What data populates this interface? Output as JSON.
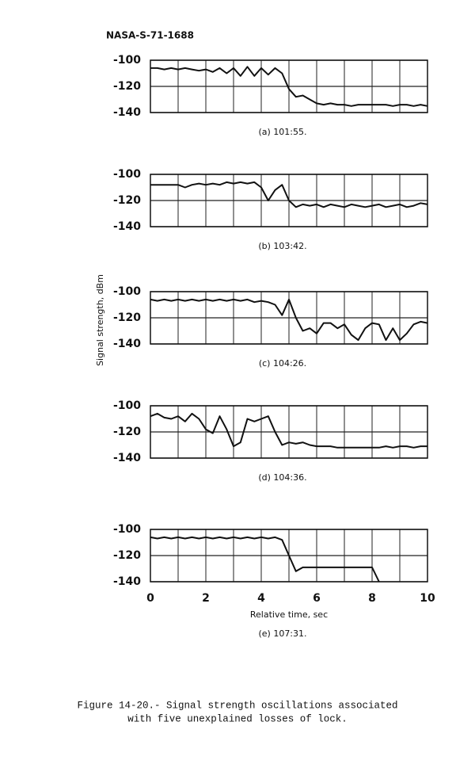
{
  "header": "NASA-S-71-1688",
  "y_label": "Signal strength, dBm",
  "x_label": "Relative time, sec",
  "caption": [
    "Figure 14-20.- Signal strength oscillations associated",
    "with five unexplained losses of lock."
  ],
  "chart_data": [
    {
      "type": "line",
      "title": "(a) 101:55.",
      "xlim": [
        0,
        10
      ],
      "ylim": [
        -140,
        -100
      ],
      "yticks": [
        -100,
        -120,
        -140
      ],
      "grid": true,
      "x": [
        0,
        0.25,
        0.5,
        0.75,
        1,
        1.25,
        1.5,
        1.75,
        2,
        2.25,
        2.5,
        2.75,
        3,
        3.25,
        3.5,
        3.75,
        4,
        4.25,
        4.5,
        4.75,
        5,
        5.25,
        5.5,
        5.75,
        6,
        6.25,
        6.5,
        6.75,
        7,
        7.25,
        7.5,
        7.75,
        8,
        8.25,
        8.5,
        8.75,
        9,
        9.25,
        9.5,
        9.75,
        10
      ],
      "series": [
        {
          "color": "#111",
          "values": [
            -106,
            -106,
            -107,
            -106,
            -107,
            -106,
            -107,
            -108,
            -107,
            -109,
            -106,
            -110,
            -106,
            -112,
            -105,
            -112,
            -106,
            -111,
            -106,
            -110,
            -122,
            -128,
            -127,
            -130,
            -133,
            -134,
            -133,
            -134,
            -134,
            -135,
            -134,
            -134,
            -134,
            -134,
            -134,
            -135,
            -134,
            -134,
            -135,
            -134,
            -135
          ]
        }
      ]
    },
    {
      "type": "line",
      "title": "(b) 103:42.",
      "xlim": [
        0,
        10
      ],
      "ylim": [
        -140,
        -100
      ],
      "yticks": [
        -100,
        -120,
        -140
      ],
      "grid": true,
      "x": [
        0,
        0.25,
        0.5,
        0.75,
        1,
        1.25,
        1.5,
        1.75,
        2,
        2.25,
        2.5,
        2.75,
        3,
        3.25,
        3.5,
        3.75,
        4,
        4.25,
        4.5,
        4.75,
        5,
        5.25,
        5.5,
        5.75,
        6,
        6.25,
        6.5,
        6.75,
        7,
        7.25,
        7.5,
        7.75,
        8,
        8.25,
        8.5,
        8.75,
        9,
        9.25,
        9.5,
        9.75,
        10
      ],
      "series": [
        {
          "color": "#111",
          "values": [
            -108,
            -108,
            -108,
            -108,
            -108,
            -110,
            -108,
            -107,
            -108,
            -107,
            -108,
            -106,
            -107,
            -106,
            -107,
            -106,
            -110,
            -120,
            -112,
            -108,
            -120,
            -125,
            -123,
            -124,
            -123,
            -125,
            -123,
            -124,
            -125,
            -123,
            -124,
            -125,
            -124,
            -123,
            -125,
            -124,
            -123,
            -125,
            -124,
            -122,
            -123
          ]
        }
      ]
    },
    {
      "type": "line",
      "title": "(c) 104:26.",
      "xlim": [
        0,
        10
      ],
      "ylim": [
        -140,
        -100
      ],
      "yticks": [
        -100,
        -120,
        -140
      ],
      "grid": true,
      "x": [
        0,
        0.25,
        0.5,
        0.75,
        1,
        1.25,
        1.5,
        1.75,
        2,
        2.25,
        2.5,
        2.75,
        3,
        3.25,
        3.5,
        3.75,
        4,
        4.25,
        4.5,
        4.75,
        5,
        5.25,
        5.5,
        5.75,
        6,
        6.25,
        6.5,
        6.75,
        7,
        7.25,
        7.5,
        7.75,
        8,
        8.25,
        8.5,
        8.75,
        9,
        9.25,
        9.5,
        9.75,
        10
      ],
      "series": [
        {
          "color": "#111",
          "values": [
            -106,
            -107,
            -106,
            -107,
            -106,
            -107,
            -106,
            -107,
            -106,
            -107,
            -106,
            -107,
            -106,
            -107,
            -106,
            -108,
            -107,
            -108,
            -110,
            -118,
            -106,
            -120,
            -130,
            -128,
            -132,
            -124,
            -124,
            -128,
            -125,
            -133,
            -137,
            -128,
            -124,
            -125,
            -137,
            -128,
            -137,
            -132,
            -125,
            -123,
            -124
          ]
        }
      ]
    },
    {
      "type": "line",
      "title": "(d) 104:36.",
      "xlim": [
        0,
        10
      ],
      "ylim": [
        -140,
        -100
      ],
      "yticks": [
        -100,
        -120,
        -140
      ],
      "grid": true,
      "x": [
        0,
        0.25,
        0.5,
        0.75,
        1,
        1.25,
        1.5,
        1.75,
        2,
        2.25,
        2.5,
        2.75,
        3,
        3.25,
        3.5,
        3.75,
        4,
        4.25,
        4.5,
        4.75,
        5,
        5.25,
        5.5,
        5.75,
        6,
        6.25,
        6.5,
        6.75,
        7,
        7.25,
        7.5,
        7.75,
        8,
        8.25,
        8.5,
        8.75,
        9,
        9.25,
        9.5,
        9.75,
        10
      ],
      "series": [
        {
          "color": "#111",
          "values": [
            -108,
            -106,
            -109,
            -110,
            -108,
            -112,
            -106,
            -110,
            -118,
            -121,
            -108,
            -118,
            -131,
            -128,
            -110,
            -112,
            -110,
            -108,
            -120,
            -130,
            -128,
            -129,
            -128,
            -130,
            -131,
            -131,
            -131,
            -132,
            -132,
            -132,
            -132,
            -132,
            -132,
            -132,
            -131,
            -132,
            -131,
            -131,
            -132,
            -131,
            -131
          ]
        }
      ]
    },
    {
      "type": "line",
      "title": "(e) 107:31.",
      "xlim": [
        0,
        10
      ],
      "ylim": [
        -140,
        -100
      ],
      "yticks": [
        -100,
        -120,
        -140
      ],
      "xticks": [
        0,
        2,
        4,
        6,
        8,
        10
      ],
      "grid": true,
      "x": [
        0,
        0.25,
        0.5,
        0.75,
        1,
        1.25,
        1.5,
        1.75,
        2,
        2.25,
        2.5,
        2.75,
        3,
        3.25,
        3.5,
        3.75,
        4,
        4.25,
        4.5,
        4.75,
        5,
        5.25,
        5.5,
        5.75,
        6,
        6.25,
        6.5,
        6.75,
        7,
        7.25,
        7.5,
        7.75,
        8,
        8.25,
        8.5,
        8.75,
        9,
        9.25,
        9.5,
        9.75,
        10
      ],
      "series": [
        {
          "color": "#111",
          "values": [
            -106,
            -107,
            -106,
            -107,
            -106,
            -107,
            -106,
            -107,
            -106,
            -107,
            -106,
            -107,
            -106,
            -107,
            -106,
            -107,
            -106,
            -107,
            -106,
            -108,
            -120,
            -132,
            -129,
            -129,
            -129,
            -129,
            -129,
            -129,
            -129,
            -129,
            -129,
            -129,
            -129,
            -140,
            null,
            null,
            null,
            null,
            null,
            null,
            null
          ]
        }
      ]
    }
  ]
}
